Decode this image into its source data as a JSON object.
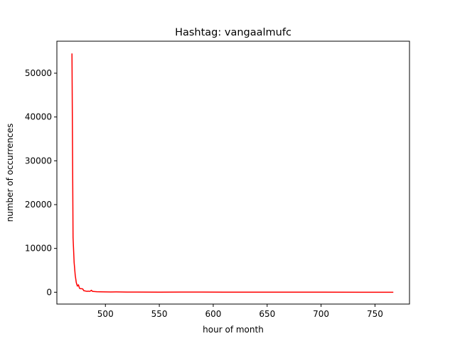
{
  "chart_data": {
    "type": "line",
    "title": "Hashtag: vangaalmufc",
    "xlabel": "hour of month",
    "ylabel": "number of occurrences",
    "xlim": [
      455,
      782
    ],
    "ylim": [
      -2700,
      57300
    ],
    "xticks": [
      500,
      550,
      600,
      650,
      700,
      750
    ],
    "yticks": [
      0,
      10000,
      20000,
      30000,
      40000,
      50000
    ],
    "grid": false,
    "series": [
      {
        "color": "#ff0000",
        "x": [
          469,
          470,
          471,
          472,
          473,
          474,
          475,
          476,
          477,
          478,
          479,
          480,
          481,
          482,
          483,
          484,
          485,
          486,
          487,
          488,
          490,
          492,
          495,
          500,
          505,
          510,
          520,
          530,
          550,
          570,
          590,
          610,
          630,
          650,
          700,
          750,
          767
        ],
        "y": [
          54500,
          12500,
          6800,
          3900,
          2200,
          1400,
          1700,
          900,
          800,
          800,
          750,
          350,
          300,
          250,
          200,
          250,
          200,
          250,
          450,
          200,
          150,
          120,
          100,
          80,
          60,
          70,
          40,
          30,
          25,
          40,
          30,
          20,
          15,
          10,
          8,
          5,
          3
        ]
      }
    ]
  }
}
